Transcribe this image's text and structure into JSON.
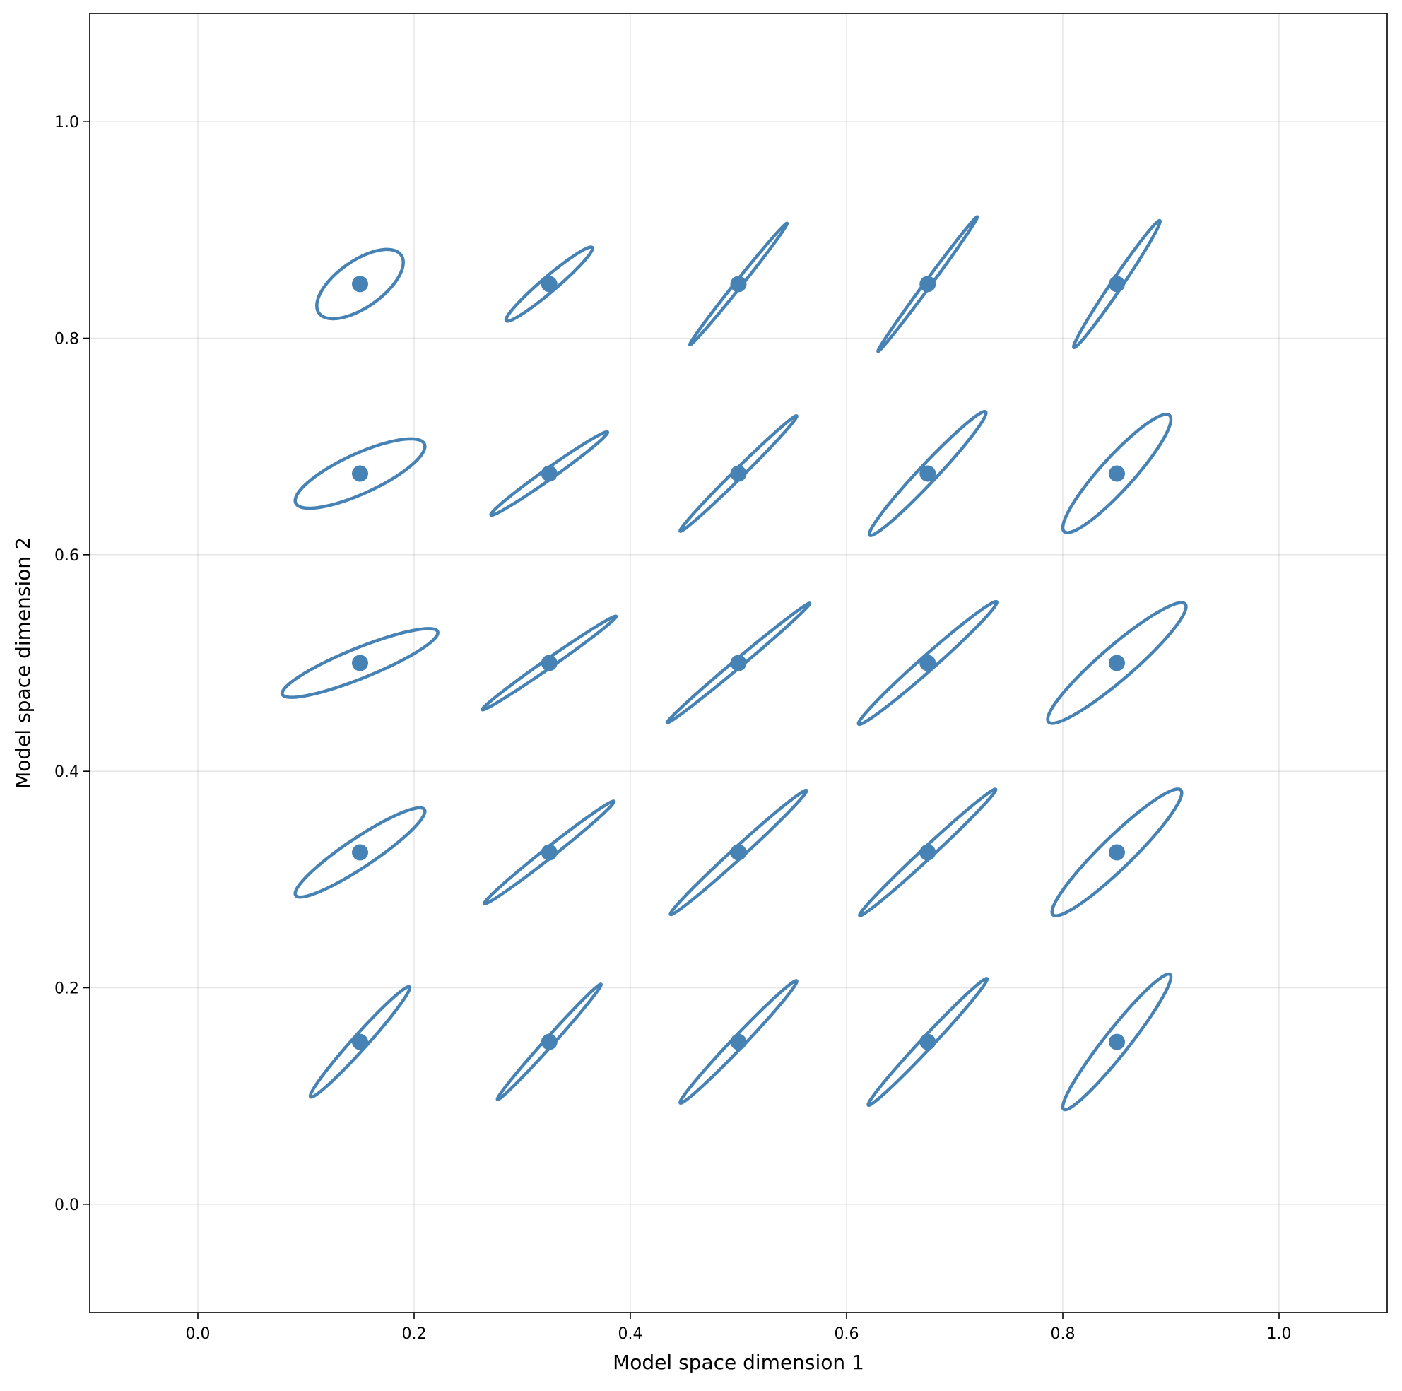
{
  "chart_data": {
    "type": "scatter",
    "title": "",
    "xlabel": "Model space dimension 1",
    "ylabel": "Model space dimension 2",
    "xlim": [
      -0.1,
      1.1
    ],
    "ylim": [
      -0.1,
      1.1
    ],
    "xticks": [
      "0.0",
      "0.2",
      "0.4",
      "0.6",
      "0.8",
      "1.0"
    ],
    "yticks": [
      "0.0",
      "0.2",
      "0.4",
      "0.6",
      "0.8",
      "1.0"
    ],
    "xtick_values": [
      0.0,
      0.2,
      0.4,
      0.6,
      0.8,
      1.0
    ],
    "ytick_values": [
      0.0,
      0.2,
      0.4,
      0.6,
      0.8,
      1.0
    ],
    "grid": true,
    "color": "#4682b4",
    "points": [
      {
        "x": 0.15,
        "y": 0.15,
        "ellipse_dx": 0.046,
        "ellipse_dy": 0.05,
        "ellipse_dy_other": 0.01
      },
      {
        "x": 0.325,
        "y": 0.15,
        "ellipse_dx": 0.048,
        "ellipse_dy": 0.053,
        "ellipse_dy_other": 0.006
      },
      {
        "x": 0.5,
        "y": 0.15,
        "ellipse_dx": 0.054,
        "ellipse_dy": 0.056,
        "ellipse_dy_other": 0.008
      },
      {
        "x": 0.675,
        "y": 0.15,
        "ellipse_dx": 0.055,
        "ellipse_dy": 0.058,
        "ellipse_dy_other": 0.008
      },
      {
        "x": 0.85,
        "y": 0.15,
        "ellipse_dx": 0.05,
        "ellipse_dy": 0.06,
        "ellipse_dy_other": 0.018
      },
      {
        "x": 0.15,
        "y": 0.325,
        "ellipse_dx": 0.06,
        "ellipse_dy": 0.038,
        "ellipse_dy_other": 0.016
      },
      {
        "x": 0.325,
        "y": 0.325,
        "ellipse_dx": 0.06,
        "ellipse_dy": 0.047,
        "ellipse_dy_other": 0.006
      },
      {
        "x": 0.5,
        "y": 0.325,
        "ellipse_dx": 0.063,
        "ellipse_dy": 0.057,
        "ellipse_dy_other": 0.007
      },
      {
        "x": 0.675,
        "y": 0.325,
        "ellipse_dx": 0.063,
        "ellipse_dy": 0.058,
        "ellipse_dy_other": 0.007
      },
      {
        "x": 0.85,
        "y": 0.325,
        "ellipse_dx": 0.06,
        "ellipse_dy": 0.055,
        "ellipse_dy_other": 0.02
      },
      {
        "x": 0.15,
        "y": 0.5,
        "ellipse_dx": 0.072,
        "ellipse_dy": 0.028,
        "ellipse_dy_other": 0.015
      },
      {
        "x": 0.325,
        "y": 0.5,
        "ellipse_dx": 0.062,
        "ellipse_dy": 0.043,
        "ellipse_dy_other": 0.005
      },
      {
        "x": 0.5,
        "y": 0.5,
        "ellipse_dx": 0.066,
        "ellipse_dy": 0.055,
        "ellipse_dy_other": 0.005
      },
      {
        "x": 0.675,
        "y": 0.5,
        "ellipse_dx": 0.064,
        "ellipse_dy": 0.056,
        "ellipse_dy_other": 0.009
      },
      {
        "x": 0.85,
        "y": 0.5,
        "ellipse_dx": 0.064,
        "ellipse_dy": 0.052,
        "ellipse_dy_other": 0.02
      },
      {
        "x": 0.15,
        "y": 0.675,
        "ellipse_dx": 0.06,
        "ellipse_dy": 0.025,
        "ellipse_dy_other": 0.02
      },
      {
        "x": 0.325,
        "y": 0.675,
        "ellipse_dx": 0.054,
        "ellipse_dy": 0.038,
        "ellipse_dy_other": 0.006
      },
      {
        "x": 0.5,
        "y": 0.675,
        "ellipse_dx": 0.054,
        "ellipse_dy": 0.053,
        "ellipse_dy_other": 0.006
      },
      {
        "x": 0.675,
        "y": 0.675,
        "ellipse_dx": 0.054,
        "ellipse_dy": 0.056,
        "ellipse_dy_other": 0.012
      },
      {
        "x": 0.85,
        "y": 0.675,
        "ellipse_dx": 0.05,
        "ellipse_dy": 0.05,
        "ellipse_dy_other": 0.022
      },
      {
        "x": 0.15,
        "y": 0.85,
        "ellipse_dx": 0.04,
        "ellipse_dy": 0.02,
        "ellipse_dy_other": 0.025
      },
      {
        "x": 0.325,
        "y": 0.85,
        "ellipse_dx": 0.04,
        "ellipse_dy": 0.033,
        "ellipse_dy_other": 0.009
      },
      {
        "x": 0.5,
        "y": 0.85,
        "ellipse_dx": 0.045,
        "ellipse_dy": 0.056,
        "ellipse_dy_other": 0.005
      },
      {
        "x": 0.675,
        "y": 0.85,
        "ellipse_dx": 0.046,
        "ellipse_dy": 0.062,
        "ellipse_dy_other": 0.005
      },
      {
        "x": 0.85,
        "y": 0.85,
        "ellipse_dx": 0.04,
        "ellipse_dy": 0.058,
        "ellipse_dy_other": 0.009
      }
    ]
  }
}
